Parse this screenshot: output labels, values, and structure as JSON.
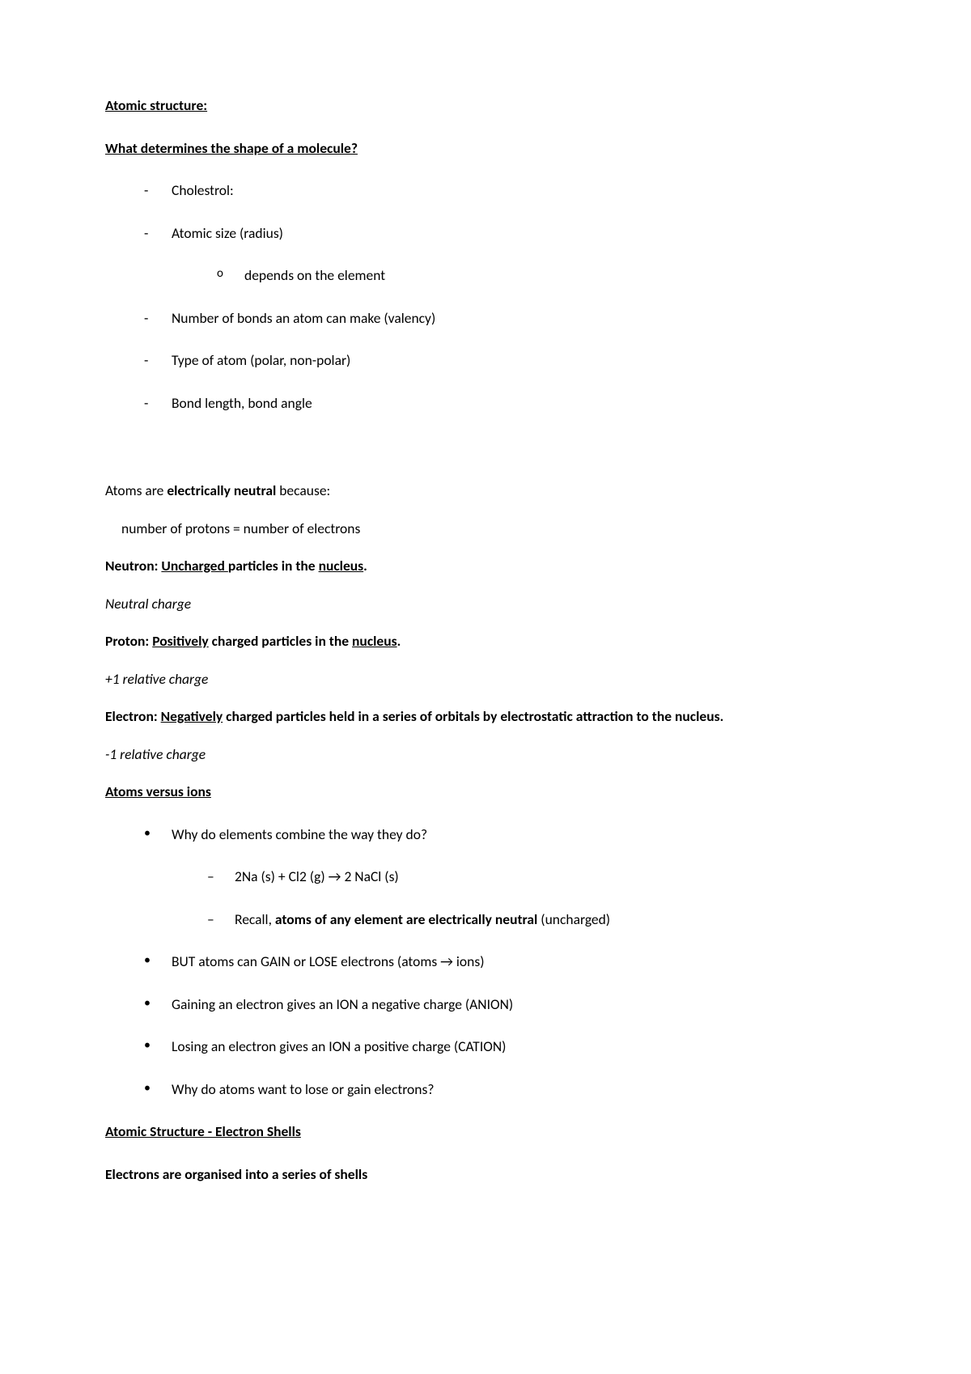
{
  "title": "Atomic structure:",
  "subtitle": "What determines the shape of a molecule?",
  "determinants": {
    "i0": "Cholestrol:",
    "i1": "Atomic size (radius)",
    "i1sub": "depends on the element",
    "i2": "Number of bonds an atom can make (valency)",
    "i3": "Type of atom (polar, non-polar)",
    "i4": "Bond length, bond angle"
  },
  "neutral_intro_a": "Atoms are ",
  "neutral_intro_b": "electrically neutral",
  "neutral_intro_c": " because:",
  "neutral_equation": "number of protons = number of electrons",
  "neutron_a": "Neutron: ",
  "neutron_b": "Uncharged ",
  "neutron_c": "particles in the ",
  "neutron_d": "nucleus",
  "neutron_e": ".",
  "neutron_charge": "Neutral charge",
  "proton_a": "Proton: ",
  "proton_b": "Positively",
  "proton_c": " charged particles in the ",
  "proton_d": "nucleus",
  "proton_e": ".",
  "proton_charge": "+1 relative charge",
  "electron_a": "Electron: ",
  "electron_b": "Negatively",
  "electron_c": " charged particles held in a series of orbitals by electrostatic attraction to the nucleus.",
  "electron_charge": "-1 relative charge",
  "atoms_ions_heading": "Atoms versus ions",
  "ions": {
    "i0": "Why do elements combine the way they do?",
    "i0sub0": "2Na (s) + Cl2 (g) → 2 NaCl (s)",
    "i0sub1a": "Recall, ",
    "i0sub1b": "atoms of any element are electrically neutral ",
    "i0sub1c": "(uncharged)",
    "i1": "BUT atoms can GAIN or LOSE electrons (atoms → ions)",
    "i2": "Gaining an electron gives  an ION a negative charge (ANION)",
    "i3": "Losing an electron gives an ION a positive charge (CATION)",
    "i4": "Why do atoms want to lose or gain electrons?"
  },
  "shells_heading": "Atomic Structure - Electron Shells",
  "shells_line": "Electrons are organised into a series of shells"
}
